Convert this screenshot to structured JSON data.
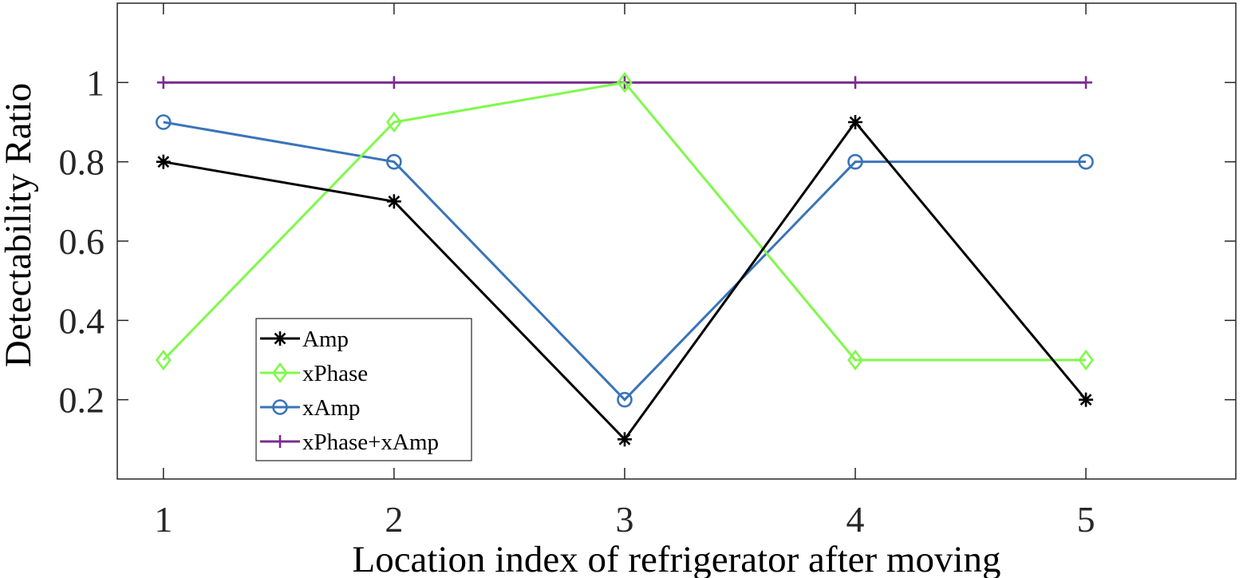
{
  "chart_data": {
    "type": "line",
    "xlabel": "Location index of refrigerator after moving",
    "ylabel": "Detectability Ratio",
    "x": [
      1,
      2,
      3,
      4,
      5
    ],
    "xlim": [
      0.8,
      5.65
    ],
    "ylim": [
      0,
      1.2
    ],
    "xticks": [
      1,
      2,
      3,
      4,
      5
    ],
    "yticks": [
      0.2,
      0.4,
      0.6,
      0.8,
      1
    ],
    "ytick_labels": [
      "0.2",
      "0.4",
      "0.6",
      "0.8",
      "1"
    ],
    "grid": false,
    "legend_position": "lower-left",
    "series": [
      {
        "name": "Amp",
        "color": "#000000",
        "marker": "asterisk",
        "values": [
          0.8,
          0.7,
          0.1,
          0.9,
          0.2
        ]
      },
      {
        "name": "xPhase",
        "color": "#7ff94a",
        "marker": "diamond",
        "values": [
          0.3,
          0.9,
          1.0,
          0.3,
          0.3
        ]
      },
      {
        "name": "xAmp",
        "color": "#3a74b9",
        "marker": "circle",
        "values": [
          0.9,
          0.8,
          0.2,
          0.8,
          0.8
        ]
      },
      {
        "name": "xPhase+xAmp",
        "color": "#7a2d8f",
        "marker": "plus",
        "values": [
          1,
          1,
          1,
          1,
          1
        ]
      }
    ]
  }
}
